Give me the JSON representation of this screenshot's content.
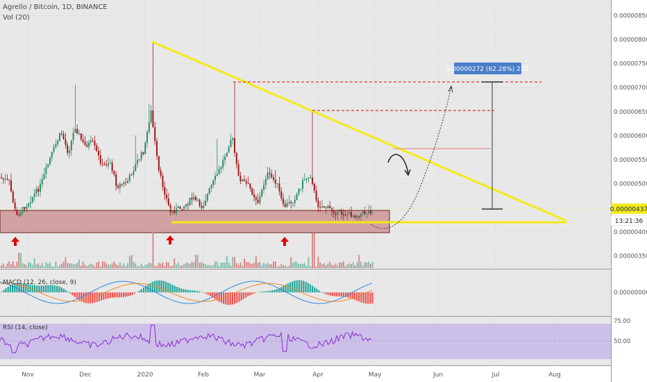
{
  "header": {
    "title": "Agrello / Bitcoin, 1D, BINANCE",
    "vol_label": "Vol (20)"
  },
  "panes": {
    "macd_label": "MACD (12, 26, close, 9)",
    "rsi_label": "RSI (14, close)"
  },
  "annotation": {
    "measure_label": "0.00000272 (62.28%) 272"
  },
  "price_badge": {
    "price": "0.00000437",
    "countdown": "13:21:36"
  },
  "colors": {
    "background": "#e8e8e8",
    "up": "#2a8a6a",
    "down": "#a01818",
    "trendline": "#f5ea14",
    "support_zone": "#c98585",
    "dashed_target": "#e03030",
    "rsi_band": "#c8b8e8",
    "rsi_line": "#8a2bd6",
    "macd_line": "#2e86de",
    "signal_line": "#f08a24",
    "badge": "#4a7ec8"
  },
  "icons": [
    "up-arrow-icon",
    "curved-arrow-icon"
  ],
  "chart_data": [
    {
      "type": "candlestick",
      "title": "Agrello / Bitcoin, 1D, BINANCE",
      "x_ticks": [
        "Nov",
        "Dec",
        "2020",
        "Feb",
        "Mar",
        "Apr",
        "May",
        "Jun",
        "Jul",
        "Aug"
      ],
      "y_ticks": [
        "0.00000850",
        "0.00000800",
        "0.00000750",
        "0.00000700",
        "0.00000650",
        "0.00000600",
        "0.00000550",
        "0.00000500",
        "0.00000450",
        "0.00000400",
        "0.00000350"
      ],
      "ylim": [
        3.2e-06,
        8.8e-06
      ],
      "key_levels": {
        "current_price": 4.37e-06,
        "target_1": 7.1e-06,
        "target_2": 6.5e-06,
        "support_zone": [
          3.9e-06,
          4.35e-06
        ],
        "support_line": 4.1e-06,
        "measure_from": 4.37e-06,
        "measure_to": 7.09e-06
      },
      "trendline": [
        [
          "2020-01-01",
          7.98e-06
        ],
        [
          "2020-08-05",
          4.1e-06
        ]
      ],
      "peaks": [
        [
          "2020-01-01",
          7.98e-06
        ],
        [
          "2020-02-15",
          7.1e-06
        ],
        [
          "2020-03-27",
          6.48e-06
        ]
      ]
    },
    {
      "type": "bar",
      "title": "Vol (20)"
    },
    {
      "type": "line",
      "title": "MACD (12, 26, close, 9)",
      "y_ticks": [
        "0.00000000"
      ]
    },
    {
      "type": "line",
      "title": "RSI (14, close)",
      "y_ticks": [
        "75.00",
        "50.00"
      ],
      "band": [
        30,
        70
      ]
    }
  ]
}
